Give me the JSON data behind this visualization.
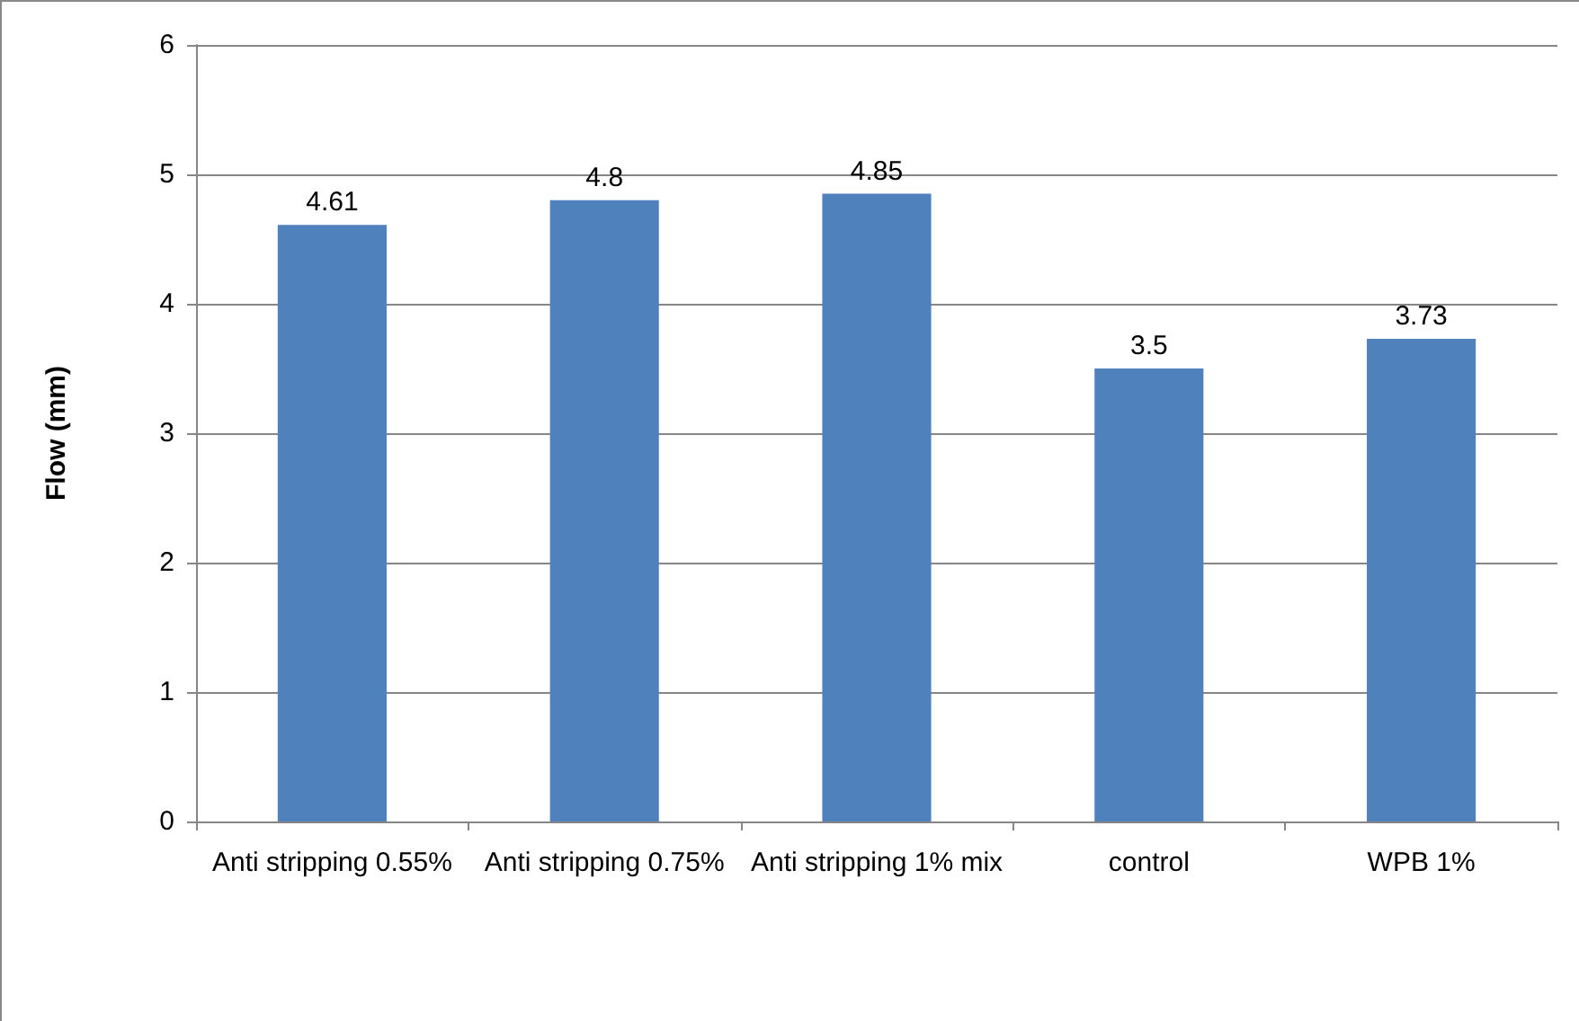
{
  "chart_data": {
    "type": "bar",
    "ylabel": "Flow (mm)",
    "categories": [
      "Anti stripping 0.55%",
      "Anti stripping 0.75%",
      "Anti stripping 1% mix",
      "control",
      "WPB 1%"
    ],
    "values": [
      4.61,
      4.8,
      4.85,
      3.5,
      3.73
    ],
    "color": "#4f81bd",
    "ylim": [
      0,
      6
    ],
    "yticks": [
      0,
      1,
      2,
      3,
      4,
      5,
      6
    ],
    "grid": "y",
    "data_labels": true
  }
}
